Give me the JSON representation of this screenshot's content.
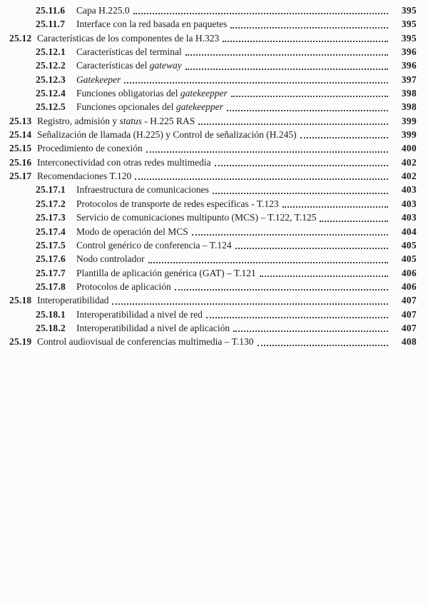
{
  "page": {
    "background": "#fcfcfa",
    "text_color": "#1d1d1d",
    "leader_color": "#424242"
  },
  "toc": {
    "entries": [
      {
        "level": 2,
        "number": "25.11.6",
        "page": "395",
        "segments": [
          {
            "text": "Capa H.225.0",
            "italic": false
          }
        ]
      },
      {
        "level": 2,
        "number": "25.11.7",
        "page": "395",
        "segments": [
          {
            "text": "Interface con la red basada en paquetes",
            "italic": false
          }
        ]
      },
      {
        "level": 1,
        "number": "25.12",
        "page": "395",
        "segments": [
          {
            "text": "Características de los componentes de la H.323",
            "italic": false
          }
        ]
      },
      {
        "level": 2,
        "number": "25.12.1",
        "page": "396",
        "segments": [
          {
            "text": "Características del terminal",
            "italic": false
          }
        ]
      },
      {
        "level": 2,
        "number": "25.12.2",
        "page": "396",
        "segments": [
          {
            "text": "Características del ",
            "italic": false
          },
          {
            "text": "gateway",
            "italic": true
          }
        ]
      },
      {
        "level": 2,
        "number": "25.12.3",
        "page": "397",
        "segments": [
          {
            "text": "Gatekeeper",
            "italic": true
          }
        ]
      },
      {
        "level": 2,
        "number": "25.12.4",
        "page": "398",
        "segments": [
          {
            "text": "Funciones obligatorias del ",
            "italic": false
          },
          {
            "text": "gatekeepper",
            "italic": true
          }
        ]
      },
      {
        "level": 2,
        "number": "25.12.5",
        "page": "398",
        "segments": [
          {
            "text": "Funciones opcionales del ",
            "italic": false
          },
          {
            "text": "gatekeepper",
            "italic": true
          }
        ]
      },
      {
        "level": 1,
        "number": "25.13",
        "page": "399",
        "segments": [
          {
            "text": "Registro, admisión y ",
            "italic": false
          },
          {
            "text": "status",
            "italic": true
          },
          {
            "text": " - H.225 RAS",
            "italic": false
          }
        ]
      },
      {
        "level": 1,
        "number": "25.14",
        "page": "399",
        "segments": [
          {
            "text": "Señalización de llamada (H.225) y Control de señalización (H.245)",
            "italic": false
          }
        ]
      },
      {
        "level": 1,
        "number": "25.15",
        "page": "400",
        "segments": [
          {
            "text": "Procedimiento de conexión",
            "italic": false
          }
        ]
      },
      {
        "level": 1,
        "number": "25.16",
        "page": "402",
        "segments": [
          {
            "text": "Interconectividad con otras redes multimedia",
            "italic": false
          }
        ]
      },
      {
        "level": 1,
        "number": "25.17",
        "page": "402",
        "segments": [
          {
            "text": "Recomendaciones T.120",
            "italic": false
          }
        ]
      },
      {
        "level": 2,
        "number": "25.17.1",
        "page": "403",
        "segments": [
          {
            "text": "Infraestructura de comunicaciones",
            "italic": false
          }
        ]
      },
      {
        "level": 2,
        "number": "25.17.2",
        "page": "403",
        "segments": [
          {
            "text": "Protocolos de transporte de redes específicas - T.123",
            "italic": false
          }
        ]
      },
      {
        "level": 2,
        "number": "25.17.3",
        "page": "403",
        "segments": [
          {
            "text": "Servicio de comunicaciones multipunto (MCS) – T.122, T.125",
            "italic": false
          }
        ]
      },
      {
        "level": 2,
        "number": "25.17.4",
        "page": "404",
        "segments": [
          {
            "text": "Modo de operación del MCS",
            "italic": false
          }
        ]
      },
      {
        "level": 2,
        "number": "25.17.5",
        "page": "405",
        "segments": [
          {
            "text": "Control genérico de conferencia – T.124",
            "italic": false
          }
        ]
      },
      {
        "level": 2,
        "number": "25.17.6",
        "page": "405",
        "segments": [
          {
            "text": "Nodo controlador",
            "italic": false
          }
        ]
      },
      {
        "level": 2,
        "number": "25.17.7",
        "page": "406",
        "segments": [
          {
            "text": "Plantilla de aplicación genérica (GAT) – T.121",
            "italic": false
          }
        ]
      },
      {
        "level": 2,
        "number": "25.17.8",
        "page": "406",
        "segments": [
          {
            "text": "Protocolos de aplicación",
            "italic": false
          }
        ]
      },
      {
        "level": 1,
        "number": "25.18",
        "page": "407",
        "segments": [
          {
            "text": "Interoperatibilidad",
            "italic": false
          }
        ]
      },
      {
        "level": 2,
        "number": "25.18.1",
        "page": "407",
        "segments": [
          {
            "text": "Interoperatibilidad a nivel de red",
            "italic": false
          }
        ]
      },
      {
        "level": 2,
        "number": "25.18.2",
        "page": "407",
        "segments": [
          {
            "text": "Interoperatibilidad a nivel de aplicación",
            "italic": false
          }
        ]
      },
      {
        "level": 1,
        "number": "25.19",
        "page": "408",
        "segments": [
          {
            "text": "Control audiovisual de conferencias multimedia – T.130",
            "italic": false
          }
        ]
      }
    ]
  }
}
